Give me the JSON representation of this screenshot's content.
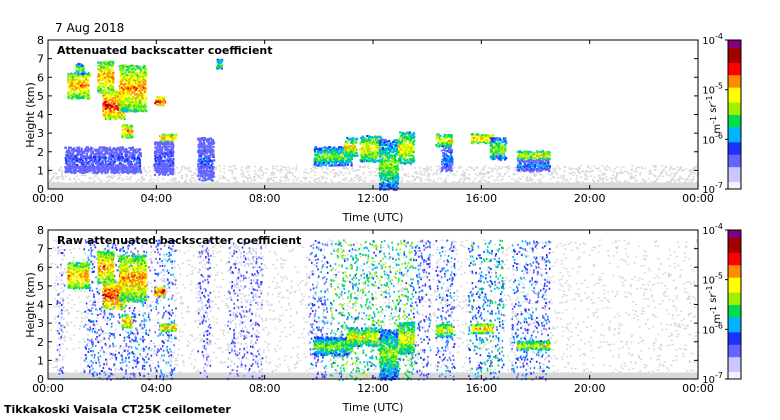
{
  "date": "7 Aug 2018",
  "instrument": "Tikkakoski Vaisala CT25K ceilometer",
  "colors": {
    "background": "#ffffff",
    "noise_gray": "#d8d8d8",
    "colormap": [
      "#f2f2ff",
      "#c8c8ff",
      "#6464ff",
      "#1e32ff",
      "#00b4ff",
      "#00dc50",
      "#a0f000",
      "#ffff00",
      "#ff8c00",
      "#ff0000",
      "#a00000",
      "#800080"
    ]
  },
  "chart_data": [
    {
      "type": "heatmap",
      "title": "Attenuated backscatter coefficient",
      "xlabel": "Time (UTC)",
      "ylabel": "Height (km)",
      "x_ticks": [
        "00:00",
        "04:00",
        "08:00",
        "12:00",
        "16:00",
        "20:00",
        "00:00"
      ],
      "xlim_hours": [
        0,
        24
      ],
      "y_ticks": [
        "0",
        "1",
        "2",
        "3",
        "4",
        "5",
        "6",
        "7",
        "8"
      ],
      "ylim_km": [
        0,
        8
      ],
      "colorbar": {
        "scale": "log",
        "range": [
          1e-07,
          0.0001
        ],
        "ticks": [
          "10-7",
          "10-6",
          "10-5",
          "10-4"
        ],
        "unit": "m-1 sr-1"
      },
      "noise_band_km": [
        0.2,
        1.3
      ],
      "features": [
        {
          "t0": 0.7,
          "t1": 1.5,
          "z0": 4.9,
          "z1": 6.3,
          "level": 8
        },
        {
          "t0": 1.0,
          "t1": 1.3,
          "z0": 6.2,
          "z1": 6.8,
          "level": 6
        },
        {
          "t0": 1.8,
          "t1": 2.4,
          "z0": 5.2,
          "z1": 6.9,
          "level": 8
        },
        {
          "t0": 2.0,
          "t1": 2.8,
          "z0": 3.8,
          "z1": 5.3,
          "level": 9
        },
        {
          "t0": 2.6,
          "t1": 3.6,
          "z0": 4.2,
          "z1": 6.7,
          "level": 8
        },
        {
          "t0": 2.7,
          "t1": 3.1,
          "z0": 2.8,
          "z1": 3.5,
          "level": 8
        },
        {
          "t0": 0.6,
          "t1": 3.4,
          "z0": 0.9,
          "z1": 2.3,
          "level": 3
        },
        {
          "t0": 3.9,
          "t1": 4.3,
          "z0": 4.5,
          "z1": 5.0,
          "level": 9
        },
        {
          "t0": 4.1,
          "t1": 4.7,
          "z0": 2.6,
          "z1": 3.0,
          "level": 8
        },
        {
          "t0": 3.9,
          "t1": 4.6,
          "z0": 0.8,
          "z1": 2.6,
          "level": 3
        },
        {
          "t0": 5.5,
          "t1": 6.1,
          "z0": 0.5,
          "z1": 2.8,
          "level": 3
        },
        {
          "t0": 6.2,
          "t1": 6.4,
          "z0": 6.5,
          "z1": 7.0,
          "level": 6
        },
        {
          "t0": 9.8,
          "t1": 11.2,
          "z0": 1.3,
          "z1": 2.3,
          "level": 6
        },
        {
          "t0": 10.9,
          "t1": 11.4,
          "z0": 1.8,
          "z1": 2.8,
          "level": 7
        },
        {
          "t0": 11.5,
          "t1": 12.3,
          "z0": 1.5,
          "z1": 2.9,
          "level": 7
        },
        {
          "t0": 12.2,
          "t1": 12.9,
          "z0": 0.0,
          "z1": 2.7,
          "level": 6
        },
        {
          "t0": 12.9,
          "t1": 13.5,
          "z0": 1.4,
          "z1": 3.1,
          "level": 7
        },
        {
          "t0": 14.3,
          "t1": 14.9,
          "z0": 2.3,
          "z1": 3.0,
          "level": 7
        },
        {
          "t0": 14.5,
          "t1": 14.9,
          "z0": 1.0,
          "z1": 2.3,
          "level": 4
        },
        {
          "t0": 15.6,
          "t1": 16.4,
          "z0": 2.5,
          "z1": 3.0,
          "level": 8
        },
        {
          "t0": 16.3,
          "t1": 16.9,
          "z0": 1.6,
          "z1": 2.8,
          "level": 6
        },
        {
          "t0": 17.3,
          "t1": 18.5,
          "z0": 1.6,
          "z1": 2.1,
          "level": 7
        },
        {
          "t0": 17.3,
          "t1": 18.5,
          "z0": 1.0,
          "z1": 1.6,
          "level": 4
        }
      ]
    },
    {
      "type": "heatmap",
      "title": "Raw attenuated backscatter coefficient",
      "xlabel": "Time (UTC)",
      "ylabel": "Height (km)",
      "x_ticks": [
        "00:00",
        "04:00",
        "08:00",
        "12:00",
        "16:00",
        "20:00",
        "00:00"
      ],
      "xlim_hours": [
        0,
        24
      ],
      "y_ticks": [
        "0",
        "1",
        "2",
        "3",
        "4",
        "5",
        "6",
        "7",
        "8"
      ],
      "ylim_km": [
        0,
        8
      ],
      "colorbar": {
        "scale": "log",
        "range": [
          1e-07,
          0.0001
        ],
        "ticks": [
          "10-7",
          "10-6",
          "10-5",
          "10-4"
        ],
        "unit": "m-1 sr-1"
      },
      "noise_band_km": [
        0.0,
        7.5
      ],
      "features": [
        {
          "t0": 0.7,
          "t1": 1.5,
          "z0": 4.9,
          "z1": 6.3,
          "level": 8
        },
        {
          "t0": 1.8,
          "t1": 2.4,
          "z0": 5.2,
          "z1": 6.9,
          "level": 8
        },
        {
          "t0": 2.0,
          "t1": 2.8,
          "z0": 3.8,
          "z1": 5.3,
          "level": 9
        },
        {
          "t0": 2.6,
          "t1": 3.6,
          "z0": 4.2,
          "z1": 6.7,
          "level": 8
        },
        {
          "t0": 2.7,
          "t1": 3.1,
          "z0": 2.8,
          "z1": 3.5,
          "level": 8
        },
        {
          "t0": 3.9,
          "t1": 4.3,
          "z0": 4.5,
          "z1": 5.0,
          "level": 9
        },
        {
          "t0": 4.1,
          "t1": 4.7,
          "z0": 2.6,
          "z1": 3.0,
          "level": 8
        },
        {
          "t0": 9.8,
          "t1": 11.2,
          "z0": 1.3,
          "z1": 2.3,
          "level": 6
        },
        {
          "t0": 11.0,
          "t1": 12.2,
          "z0": 1.8,
          "z1": 2.8,
          "level": 7
        },
        {
          "t0": 12.2,
          "t1": 12.9,
          "z0": 0.0,
          "z1": 2.7,
          "level": 6
        },
        {
          "t0": 12.9,
          "t1": 13.5,
          "z0": 1.4,
          "z1": 3.1,
          "level": 7
        },
        {
          "t0": 14.3,
          "t1": 14.9,
          "z0": 2.3,
          "z1": 3.0,
          "level": 7
        },
        {
          "t0": 15.6,
          "t1": 16.4,
          "z0": 2.5,
          "z1": 3.0,
          "level": 8
        },
        {
          "t0": 17.3,
          "t1": 18.5,
          "z0": 1.6,
          "z1": 2.1,
          "level": 7
        }
      ],
      "raw_columns": [
        {
          "t0": 0.3,
          "t1": 0.6,
          "z1": 7.5,
          "level": 2
        },
        {
          "t0": 1.3,
          "t1": 3.8,
          "z1": 7.5,
          "level": 3
        },
        {
          "t0": 3.9,
          "t1": 4.7,
          "z1": 7.5,
          "level": 3
        },
        {
          "t0": 5.5,
          "t1": 6.0,
          "z1": 7.5,
          "level": 2
        },
        {
          "t0": 6.6,
          "t1": 7.9,
          "z1": 7.5,
          "level": 2
        },
        {
          "t0": 9.6,
          "t1": 10.3,
          "z1": 7.5,
          "level": 3
        },
        {
          "t0": 10.4,
          "t1": 12.2,
          "z1": 7.5,
          "level": 5
        },
        {
          "t0": 12.2,
          "t1": 13.5,
          "z1": 7.5,
          "level": 5
        },
        {
          "t0": 13.5,
          "t1": 14.1,
          "z1": 7.5,
          "level": 3
        },
        {
          "t0": 14.3,
          "t1": 15.0,
          "z1": 7.5,
          "level": 3
        },
        {
          "t0": 15.5,
          "t1": 16.8,
          "z1": 7.5,
          "level": 4
        },
        {
          "t0": 17.1,
          "t1": 18.5,
          "z1": 7.5,
          "level": 3
        }
      ]
    }
  ]
}
